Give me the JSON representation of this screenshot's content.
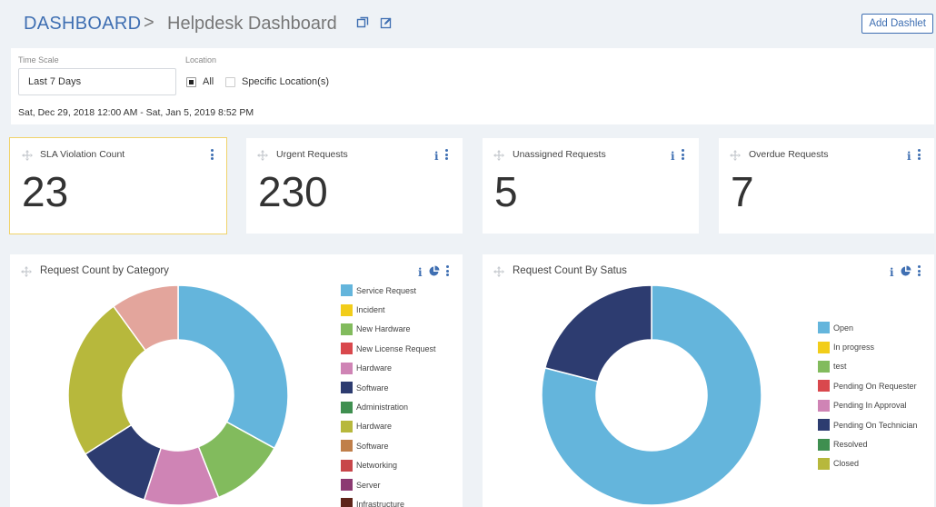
{
  "header": {
    "breadcrumb_root": "DASHBOARD",
    "separator": ">",
    "title": "Helpdesk Dashboard",
    "add_dashlet_label": "Add Dashlet",
    "icons": [
      "copy-icon",
      "edit-icon"
    ]
  },
  "filters": {
    "time_scale_label": "Time Scale",
    "time_scale_value": "Last 7 Days",
    "location_label": "Location",
    "location_options": [
      {
        "label": "All",
        "selected": true
      },
      {
        "label": "Specific Location(s)",
        "selected": false
      }
    ],
    "date_range": "Sat, Dec 29, 2018 12:00 AM - Sat, Jan 5, 2019 8:52 PM"
  },
  "stats": [
    {
      "title": "SLA Violation Count",
      "value": "23",
      "highlighted": true,
      "has_info": false
    },
    {
      "title": "Urgent Requests",
      "value": "230",
      "highlighted": false,
      "has_info": true
    },
    {
      "title": "Unassigned Requests",
      "value": "5",
      "highlighted": false,
      "has_info": true
    },
    {
      "title": "Overdue Requests",
      "value": "7",
      "highlighted": false,
      "has_info": true
    }
  ],
  "accent_color": "#3f6fb2",
  "chart_data": [
    {
      "type": "pie",
      "title": "Request Count by Category",
      "legend_placement": "right",
      "legend": [
        {
          "name": "Service Request",
          "color": "#64b5dc"
        },
        {
          "name": "Incident",
          "color": "#f2cd1a"
        },
        {
          "name": "New Hardware",
          "color": "#82bb5d"
        },
        {
          "name": "New License Request",
          "color": "#d9484d"
        },
        {
          "name": "Hardware",
          "color": "#cf84b5"
        },
        {
          "name": "Software",
          "color": "#2d3c70"
        },
        {
          "name": "Administration",
          "color": "#3f8f50"
        },
        {
          "name": "Hardware",
          "color": "#b7b83c"
        },
        {
          "name": "Software",
          "color": "#c07f4a"
        },
        {
          "name": "Networking",
          "color": "#c8464a"
        },
        {
          "name": "Server",
          "color": "#8c3a72"
        },
        {
          "name": "Infrastructure",
          "color": "#5e2419"
        }
      ],
      "slices": [
        {
          "name": "Service Request",
          "value": 33,
          "color": "#64b5dc"
        },
        {
          "name": "New Hardware",
          "value": 11,
          "color": "#82bb5d"
        },
        {
          "name": "Hardware",
          "value": 11,
          "color": "#cf84b5"
        },
        {
          "name": "Software",
          "value": 11,
          "color": "#2d3c70"
        },
        {
          "name": "Hardware",
          "value": 24,
          "color": "#b7b83c"
        },
        {
          "name": "New License Request",
          "value": 10,
          "color": "#e3a59c"
        }
      ]
    },
    {
      "type": "pie",
      "title": "Request Count By Satus",
      "legend_placement": "right",
      "legend": [
        {
          "name": "Open",
          "color": "#64b5dc"
        },
        {
          "name": "In progress",
          "color": "#f2cd1a"
        },
        {
          "name": "test",
          "color": "#82bb5d"
        },
        {
          "name": "Pending On Requester",
          "color": "#d9484d"
        },
        {
          "name": "Pending In Approval",
          "color": "#cf84b5"
        },
        {
          "name": "Pending On Technician",
          "color": "#2d3c70"
        },
        {
          "name": "Resolved",
          "color": "#3f8f50"
        },
        {
          "name": "Closed",
          "color": "#b7b83c"
        }
      ],
      "slices": [
        {
          "name": "Open",
          "value": 79,
          "color": "#64b5dc"
        },
        {
          "name": "Pending On Technician",
          "value": 21,
          "color": "#2d3c70"
        }
      ]
    }
  ]
}
